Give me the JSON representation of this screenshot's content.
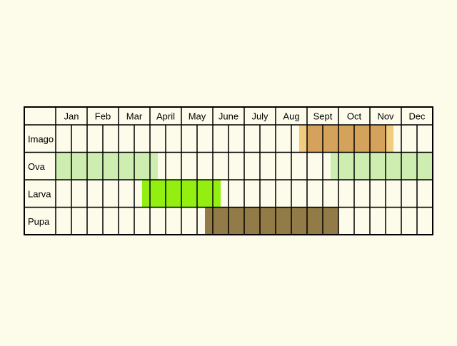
{
  "chart_data": {
    "type": "table",
    "title": "",
    "columns": [
      "Jan",
      "Feb",
      "Mar",
      "April",
      "May",
      "June",
      "July",
      "Aug",
      "Sept",
      "Oct",
      "Nov",
      "Dec"
    ],
    "subdivisions_per_month": 2,
    "grid": true,
    "rows": [
      {
        "label": "Imago",
        "periods": [
          {
            "start": 15.5,
            "end": 21.5,
            "color": "#f0cc7e"
          },
          {
            "start": 16.0,
            "end": 21.0,
            "color": "#d4a25a"
          }
        ]
      },
      {
        "label": "Ova",
        "periods": [
          {
            "start": 0,
            "end": 6.5,
            "color": "#cdeeb0"
          },
          {
            "start": 17.5,
            "end": 24,
            "color": "#cdeeb0"
          }
        ]
      },
      {
        "label": "Larva",
        "periods": [
          {
            "start": 5.5,
            "end": 10.5,
            "color": "#93ef0f"
          }
        ]
      },
      {
        "label": "Pupa",
        "periods": [
          {
            "start": 9.5,
            "end": 18,
            "color": "#927b47"
          }
        ]
      }
    ]
  }
}
